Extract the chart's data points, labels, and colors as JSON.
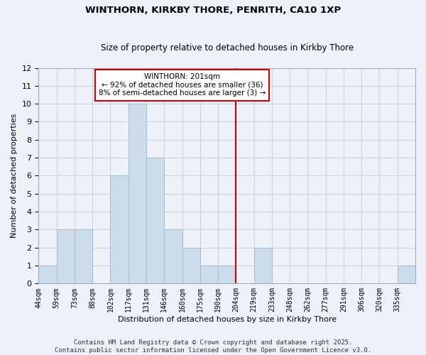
{
  "title": "WINTHORN, KIRKBY THORE, PENRITH, CA10 1XP",
  "subtitle": "Size of property relative to detached houses in Kirkby Thore",
  "xlabel": "Distribution of detached houses by size in Kirkby Thore",
  "ylabel": "Number of detached properties",
  "bin_labels": [
    "44sqm",
    "59sqm",
    "73sqm",
    "88sqm",
    "102sqm",
    "117sqm",
    "131sqm",
    "146sqm",
    "160sqm",
    "175sqm",
    "190sqm",
    "204sqm",
    "219sqm",
    "233sqm",
    "248sqm",
    "262sqm",
    "277sqm",
    "291sqm",
    "306sqm",
    "320sqm",
    "335sqm"
  ],
  "bar_heights": [
    1,
    3,
    3,
    0,
    6,
    10,
    7,
    3,
    2,
    1,
    1,
    0,
    2,
    0,
    0,
    0,
    0,
    0,
    0,
    0,
    1
  ],
  "bar_color": "#ccdcec",
  "bar_edge_color": "#aabccc",
  "vline_color": "#cc0000",
  "annotation_text_line1": "WINTHORN: 201sqm",
  "annotation_text_line2": "← 92% of detached houses are smaller (36)",
  "annotation_text_line3": "8% of semi-detached houses are larger (3) →",
  "ylim": [
    0,
    12
  ],
  "yticks": [
    0,
    1,
    2,
    3,
    4,
    5,
    6,
    7,
    8,
    9,
    10,
    11,
    12
  ],
  "grid_color": "#c8d4e0",
  "bg_color": "#eef2f8",
  "footer_line1": "Contains HM Land Registry data © Crown copyright and database right 2025.",
  "footer_line2": "Contains public sector information licensed under the Open Government Licence v3.0.",
  "title_fontsize": 9.5,
  "subtitle_fontsize": 8.5,
  "axis_label_fontsize": 8,
  "tick_fontsize": 7,
  "footer_fontsize": 6.5
}
